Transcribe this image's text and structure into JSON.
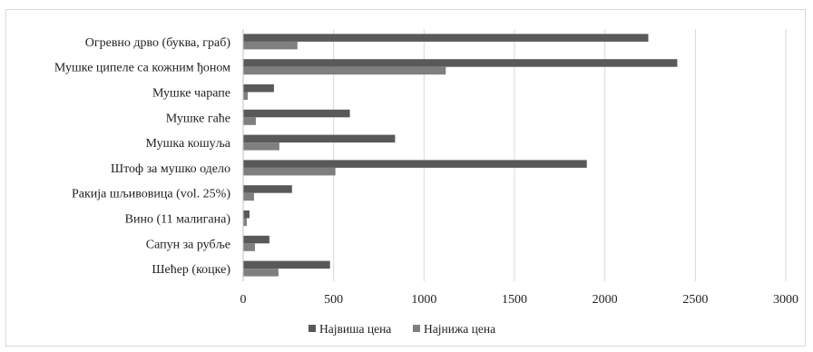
{
  "chart_data": {
    "type": "bar",
    "orientation": "horizontal",
    "categories": [
      "Огревно дрво (буква, граб)",
      "Мушке ципеле са кожним ђоном",
      "Мушке чарапе",
      "Мушке гаће",
      "Мушка кошуља",
      "Штоф за мушко одело",
      "Ракија шљивовица (vol. 25%)",
      "Вино (11 малигана)",
      "Сапун за рубље",
      "Шећер (коцке)"
    ],
    "series": [
      {
        "name": "Највиша цена",
        "color": "#595959",
        "values": [
          2240,
          2400,
          170,
          590,
          840,
          1900,
          270,
          35,
          145,
          480
        ]
      },
      {
        "name": "Најнижа цена",
        "color": "#7f7f7f",
        "values": [
          300,
          1120,
          25,
          70,
          200,
          510,
          60,
          20,
          65,
          195
        ]
      }
    ],
    "xlim": [
      0,
      3000
    ],
    "xticks": [
      "0",
      "500",
      "1000",
      "1500",
      "2000",
      "2500",
      "3000"
    ],
    "grid": "vertical",
    "legend_position": "bottom",
    "title": "",
    "xlabel": "",
    "ylabel": ""
  }
}
